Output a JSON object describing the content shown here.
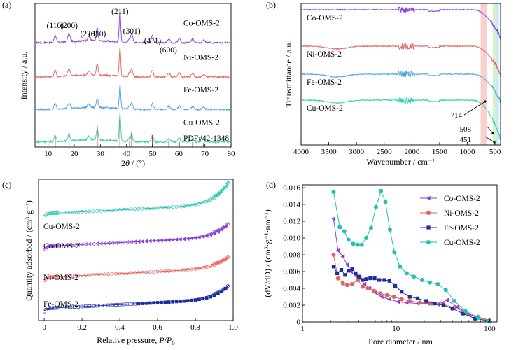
{
  "figure": {
    "panels": [
      "(a)",
      "(b)",
      "(c)",
      "(d)"
    ]
  },
  "colors": {
    "co": "#8b3fd6",
    "ni": "#e0635f",
    "fe": "#4ea3dc",
    "cu": "#2ecfaa",
    "ref": "#d9302b",
    "fe_d": "#1c2e9e",
    "cu_d": "#22c1b5",
    "band_red": "#f6c9c5",
    "band_green": "#cdeec8",
    "band_blue": "#bfe4f2"
  },
  "chart_data": [
    {
      "panel": "(a)",
      "type": "line",
      "title": "",
      "xlabel": "2θ / (°)",
      "xlabel_parts": {
        "num": "2",
        "theta": "θ",
        "rest": " / (°)"
      },
      "ylabel": "Intensity / a.u.",
      "xlim": [
        5,
        80
      ],
      "xticks": [
        10,
        20,
        30,
        40,
        50,
        60,
        70,
        80
      ],
      "peaks_labels": [
        {
          "label": "(110)",
          "x": 12.7
        },
        {
          "label": "(200)",
          "x": 18.0
        },
        {
          "label": "(220)",
          "x": 25.6
        },
        {
          "label": "(310)",
          "x": 28.8
        },
        {
          "label": "(211)",
          "x": 37.5
        },
        {
          "label": "(301)",
          "x": 42.0
        },
        {
          "label": "(411)",
          "x": 50.0
        },
        {
          "label": "(600)",
          "x": 56.0
        }
      ],
      "series": [
        {
          "name": "Co-OMS-2",
          "offset": 3.0
        },
        {
          "name": "Ni-OMS-2",
          "offset": 2.0
        },
        {
          "name": "Fe-OMS-2",
          "offset": 1.05
        },
        {
          "name": "Cu-OMS-2",
          "offset": 0.1
        }
      ],
      "reference": {
        "name": "PDF#42-1348",
        "lines": [
          {
            "x": 12.7,
            "h": 0.45
          },
          {
            "x": 18.0,
            "h": 0.55
          },
          {
            "x": 28.8,
            "h": 0.8
          },
          {
            "x": 37.5,
            "h": 1.0
          },
          {
            "x": 41.2,
            "h": 0.25
          },
          {
            "x": 42.0,
            "h": 0.6
          },
          {
            "x": 49.9,
            "h": 0.45
          },
          {
            "x": 56.2,
            "h": 0.25
          },
          {
            "x": 60.2,
            "h": 0.2
          },
          {
            "x": 65.3,
            "h": 0.2
          },
          {
            "x": 69.5,
            "h": 0.15
          }
        ]
      }
    },
    {
      "panel": "(b)",
      "type": "line",
      "title": "",
      "xlabel": "Wavenumber / cm⁻¹",
      "ylabel": "Transmittance / a.u.",
      "xlim": [
        4000,
        400
      ],
      "xticks": [
        4000,
        3500,
        3000,
        2500,
        2000,
        1500,
        1000,
        500
      ],
      "series": [
        {
          "name": "Co-OMS-2"
        },
        {
          "name": "Ni-OMS-2"
        },
        {
          "name": "Fe-OMS-2"
        },
        {
          "name": "Cu-OMS-2"
        }
      ],
      "bands": [
        {
          "from": 760,
          "to": 640,
          "color": "band_red"
        },
        {
          "from": 540,
          "to": 480,
          "color": "band_green"
        },
        {
          "from": 475,
          "to": 430,
          "color": "band_blue"
        }
      ],
      "annotations": [
        {
          "label": "714",
          "x": 714
        },
        {
          "label": "508",
          "x": 508
        },
        {
          "label": "451",
          "x": 451
        }
      ]
    },
    {
      "panel": "(c)",
      "type": "scatter",
      "title": "",
      "xlabel": "Relative pressure, P/P0",
      "xlabel_parts": {
        "pre": "Relative pressure, ",
        "P": "P",
        "slash": "/",
        "P0": "P",
        "sub": "0"
      },
      "ylabel": "Quantity adsorbed / (cm³·g⁻¹)",
      "xlim": [
        -0.03,
        1.0
      ],
      "xticks": [
        0.0,
        0.2,
        0.4,
        0.6,
        0.8,
        1.0
      ],
      "xtick_labels": [
        "0",
        "0.2",
        "0.4",
        "0.6",
        "0.8",
        "1.0"
      ],
      "series": [
        {
          "name": "Cu-OMS-2",
          "base": 3.0,
          "rise": 0.9
        },
        {
          "name": "Co-OMS-2",
          "base": 2.05,
          "rise": 0.55
        },
        {
          "name": "Ni-OMS-2",
          "base": 1.15,
          "rise": 0.45
        },
        {
          "name": "Fe-OMS-2",
          "base": 0.25,
          "rise": 0.55
        }
      ]
    },
    {
      "panel": "(d)",
      "type": "line",
      "title": "",
      "xlabel": "Pore diameter / nm",
      "ylabel": "(dV/dD) / (cm³·g⁻¹·nm⁻¹)",
      "xscale": "log",
      "xlim": [
        1,
        120
      ],
      "ylim": [
        0,
        0.016
      ],
      "xticks": [
        1,
        10,
        100
      ],
      "yticks": [
        0,
        0.002,
        0.004,
        0.006,
        0.008,
        0.01,
        0.012,
        0.014,
        0.016
      ],
      "ytick_labels": [
        "0",
        "0.002",
        "0.004",
        "0.006",
        "0.008",
        "0.010",
        "0.012",
        "0.014",
        "0.016"
      ],
      "legend": "top-right",
      "series": [
        {
          "name": "Co-OMS-2",
          "marker": "triangle-left",
          "x": [
            2.15,
            2.4,
            2.7,
            3.0,
            3.3,
            3.7,
            4.1,
            4.6,
            5.2,
            6.0,
            7.0,
            8.5,
            10.5,
            13,
            17,
            22,
            28,
            35,
            45,
            60,
            100
          ],
          "y": [
            0.0123,
            0.0085,
            0.0078,
            0.0068,
            0.006,
            0.0055,
            0.0052,
            0.0045,
            0.004,
            0.0035,
            0.003,
            0.0027,
            0.0024,
            0.0023,
            0.0022,
            0.0022,
            0.0021,
            0.0026,
            0.0018,
            0.0009,
            0.0002
          ]
        },
        {
          "name": "Ni-OMS-2",
          "marker": "circle",
          "x": [
            2.15,
            2.4,
            2.7,
            3.0,
            3.4,
            3.9,
            4.4,
            5.0,
            5.8,
            6.8,
            8.0,
            9.5,
            11.5,
            14,
            18,
            24,
            32,
            42,
            55,
            75,
            100
          ],
          "y": [
            0.008,
            0.0052,
            0.0046,
            0.0044,
            0.0045,
            0.005,
            0.0042,
            0.004,
            0.0037,
            0.0034,
            0.0032,
            0.003,
            0.0027,
            0.0025,
            0.0023,
            0.0022,
            0.0021,
            0.0017,
            0.0012,
            0.0006,
            0.0002
          ]
        },
        {
          "name": "Fe-OMS-2",
          "marker": "square",
          "x": [
            2.15,
            2.35,
            2.6,
            2.85,
            3.1,
            3.4,
            3.7,
            4.0,
            4.4,
            4.8,
            5.3,
            5.9,
            6.6,
            7.5,
            8.5,
            9.8,
            11.5,
            14,
            17,
            21,
            26,
            32,
            40,
            52,
            70,
            100
          ],
          "y": [
            0.0066,
            0.0058,
            0.0062,
            0.0056,
            0.0061,
            0.0063,
            0.0058,
            0.0054,
            0.005,
            0.0051,
            0.0052,
            0.0052,
            0.005,
            0.005,
            0.0049,
            0.0043,
            0.0036,
            0.003,
            0.0028,
            0.0025,
            0.0022,
            0.002,
            0.0016,
            0.001,
            0.0004,
            0.0001
          ]
        },
        {
          "name": "Cu-OMS-2",
          "marker": "circle",
          "x": [
            2.15,
            2.5,
            2.8,
            3.1,
            3.5,
            3.9,
            4.3,
            4.8,
            5.4,
            6.1,
            6.9,
            7.7,
            8.6,
            9.6,
            11,
            13,
            15.5,
            19,
            23,
            28,
            34,
            42,
            55,
            75,
            100
          ],
          "y": [
            0.0155,
            0.0113,
            0.0108,
            0.0098,
            0.0093,
            0.0092,
            0.0092,
            0.01,
            0.0112,
            0.0137,
            0.0156,
            0.0143,
            0.011,
            0.0083,
            0.0066,
            0.0058,
            0.0054,
            0.005,
            0.0047,
            0.0045,
            0.0038,
            0.0025,
            0.0013,
            0.0005,
            0.0001
          ]
        }
      ]
    }
  ]
}
